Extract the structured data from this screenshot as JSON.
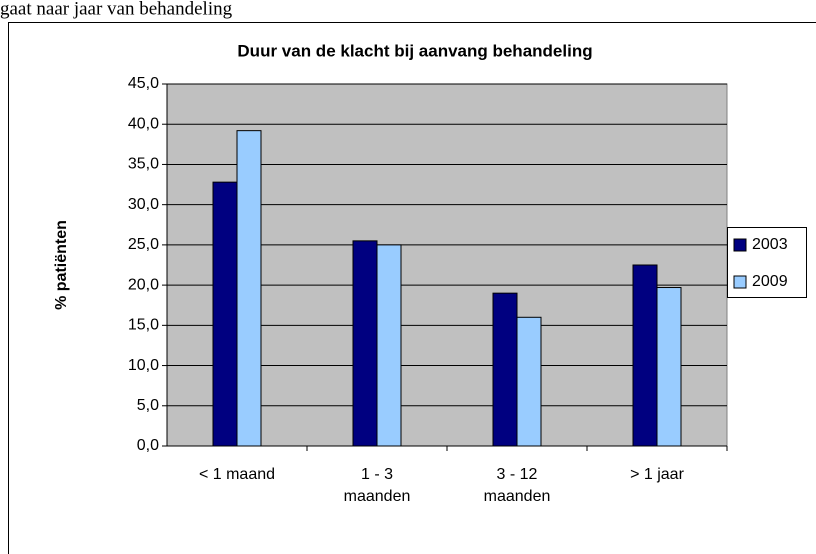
{
  "caption": "gaat naar jaar van behandeling",
  "chart_data": {
    "type": "bar",
    "title": "Duur van de klacht bij aanvang behandeling",
    "y_label": "% patiënten",
    "categories": [
      "< 1 maand",
      "1 - 3 maanden",
      "3 - 12 maanden",
      "> 1 jaar"
    ],
    "series": [
      {
        "name": "2003",
        "color": "#000080",
        "values": [
          32.8,
          25.5,
          19.0,
          22.5
        ]
      },
      {
        "name": "2009",
        "color": "#99ccff",
        "values": [
          39.2,
          25.0,
          16.0,
          19.7
        ]
      }
    ],
    "ylim": [
      0,
      45
    ],
    "yticks": [
      {
        "value": 0,
        "label": "0,0"
      },
      {
        "value": 5,
        "label": "5,0"
      },
      {
        "value": 10,
        "label": "10,0"
      },
      {
        "value": 15,
        "label": "15,0"
      },
      {
        "value": 20,
        "label": "20,0"
      },
      {
        "value": 25,
        "label": "25,0"
      },
      {
        "value": 30,
        "label": "30,0"
      },
      {
        "value": 35,
        "label": "35,0"
      },
      {
        "value": 40,
        "label": "40,0"
      },
      {
        "value": 45,
        "label": "45,0"
      }
    ],
    "grid": true,
    "plot_background": "#c0c0c0",
    "legend": "right"
  }
}
